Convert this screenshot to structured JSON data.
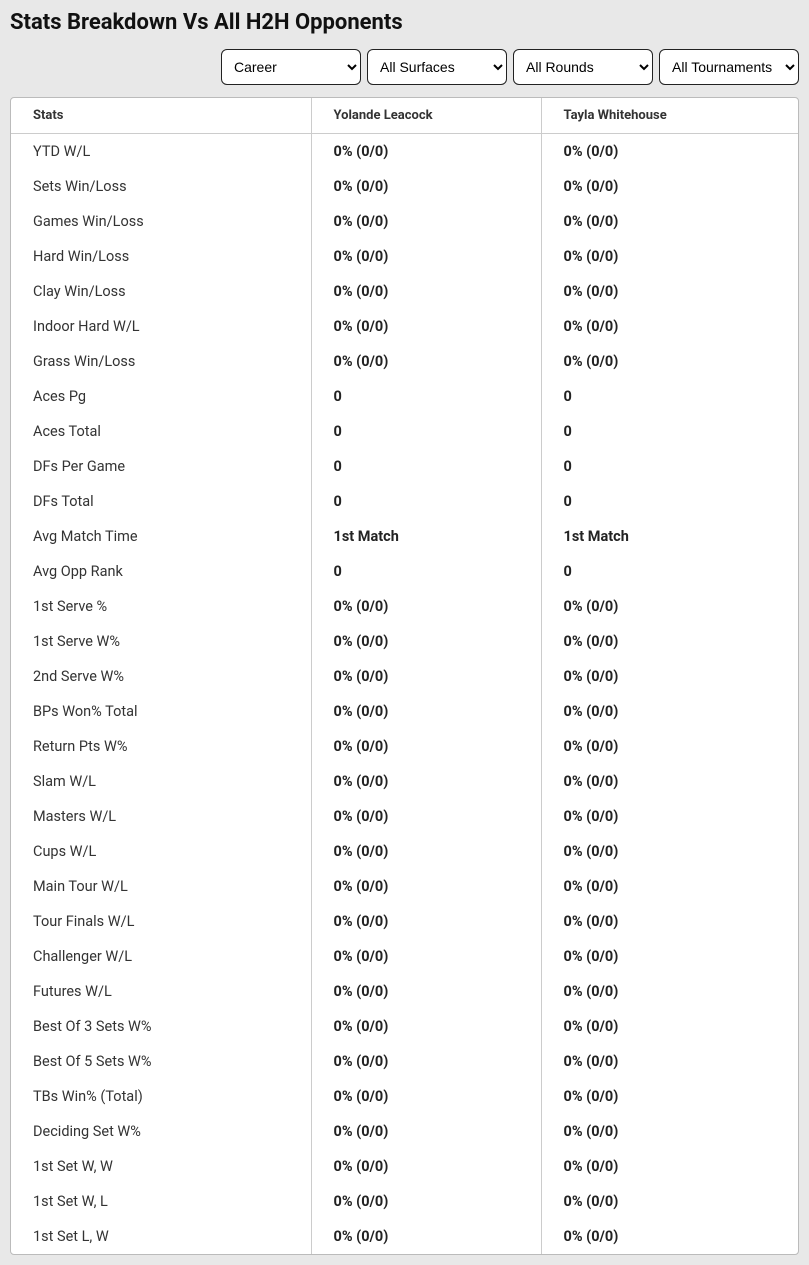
{
  "title": "Stats Breakdown Vs All H2H Opponents",
  "filters": {
    "period": {
      "selected": "Career",
      "options": [
        "Career"
      ]
    },
    "surface": {
      "selected": "All Surfaces",
      "options": [
        "All Surfaces"
      ]
    },
    "rounds": {
      "selected": "All Rounds",
      "options": [
        "All Rounds"
      ]
    },
    "tournaments": {
      "selected": "All Tournaments",
      "options": [
        "All Tournaments"
      ]
    }
  },
  "columns": [
    "Stats",
    "Yolande Leacock",
    "Tayla Whitehouse"
  ],
  "rows": [
    {
      "stat": "YTD W/L",
      "p1": "0% (0/0)",
      "p2": "0% (0/0)"
    },
    {
      "stat": "Sets Win/Loss",
      "p1": "0% (0/0)",
      "p2": "0% (0/0)"
    },
    {
      "stat": "Games Win/Loss",
      "p1": "0% (0/0)",
      "p2": "0% (0/0)"
    },
    {
      "stat": "Hard Win/Loss",
      "p1": "0% (0/0)",
      "p2": "0% (0/0)"
    },
    {
      "stat": "Clay Win/Loss",
      "p1": "0% (0/0)",
      "p2": "0% (0/0)"
    },
    {
      "stat": "Indoor Hard W/L",
      "p1": "0% (0/0)",
      "p2": "0% (0/0)"
    },
    {
      "stat": "Grass Win/Loss",
      "p1": "0% (0/0)",
      "p2": "0% (0/0)"
    },
    {
      "stat": "Aces Pg",
      "p1": "0",
      "p2": "0"
    },
    {
      "stat": "Aces Total",
      "p1": "0",
      "p2": "0"
    },
    {
      "stat": "DFs Per Game",
      "p1": "0",
      "p2": "0"
    },
    {
      "stat": "DFs Total",
      "p1": "0",
      "p2": "0"
    },
    {
      "stat": "Avg Match Time",
      "p1": "1st Match",
      "p2": "1st Match"
    },
    {
      "stat": "Avg Opp Rank",
      "p1": "0",
      "p2": "0"
    },
    {
      "stat": "1st Serve %",
      "p1": "0% (0/0)",
      "p2": "0% (0/0)"
    },
    {
      "stat": "1st Serve W%",
      "p1": "0% (0/0)",
      "p2": "0% (0/0)"
    },
    {
      "stat": "2nd Serve W%",
      "p1": "0% (0/0)",
      "p2": "0% (0/0)"
    },
    {
      "stat": "BPs Won% Total",
      "p1": "0% (0/0)",
      "p2": "0% (0/0)"
    },
    {
      "stat": "Return Pts W%",
      "p1": "0% (0/0)",
      "p2": "0% (0/0)"
    },
    {
      "stat": "Slam W/L",
      "p1": "0% (0/0)",
      "p2": "0% (0/0)"
    },
    {
      "stat": "Masters W/L",
      "p1": "0% (0/0)",
      "p2": "0% (0/0)"
    },
    {
      "stat": "Cups W/L",
      "p1": "0% (0/0)",
      "p2": "0% (0/0)"
    },
    {
      "stat": "Main Tour W/L",
      "p1": "0% (0/0)",
      "p2": "0% (0/0)"
    },
    {
      "stat": "Tour Finals W/L",
      "p1": "0% (0/0)",
      "p2": "0% (0/0)"
    },
    {
      "stat": "Challenger W/L",
      "p1": "0% (0/0)",
      "p2": "0% (0/0)"
    },
    {
      "stat": "Futures W/L",
      "p1": "0% (0/0)",
      "p2": "0% (0/0)"
    },
    {
      "stat": "Best Of 3 Sets W%",
      "p1": "0% (0/0)",
      "p2": "0% (0/0)"
    },
    {
      "stat": "Best Of 5 Sets W%",
      "p1": "0% (0/0)",
      "p2": "0% (0/0)"
    },
    {
      "stat": "TBs Win% (Total)",
      "p1": "0% (0/0)",
      "p2": "0% (0/0)"
    },
    {
      "stat": "Deciding Set W%",
      "p1": "0% (0/0)",
      "p2": "0% (0/0)"
    },
    {
      "stat": "1st Set W, W",
      "p1": "0% (0/0)",
      "p2": "0% (0/0)"
    },
    {
      "stat": "1st Set W, L",
      "p1": "0% (0/0)",
      "p2": "0% (0/0)"
    },
    {
      "stat": "1st Set L, W",
      "p1": "0% (0/0)",
      "p2": "0% (0/0)"
    }
  ]
}
